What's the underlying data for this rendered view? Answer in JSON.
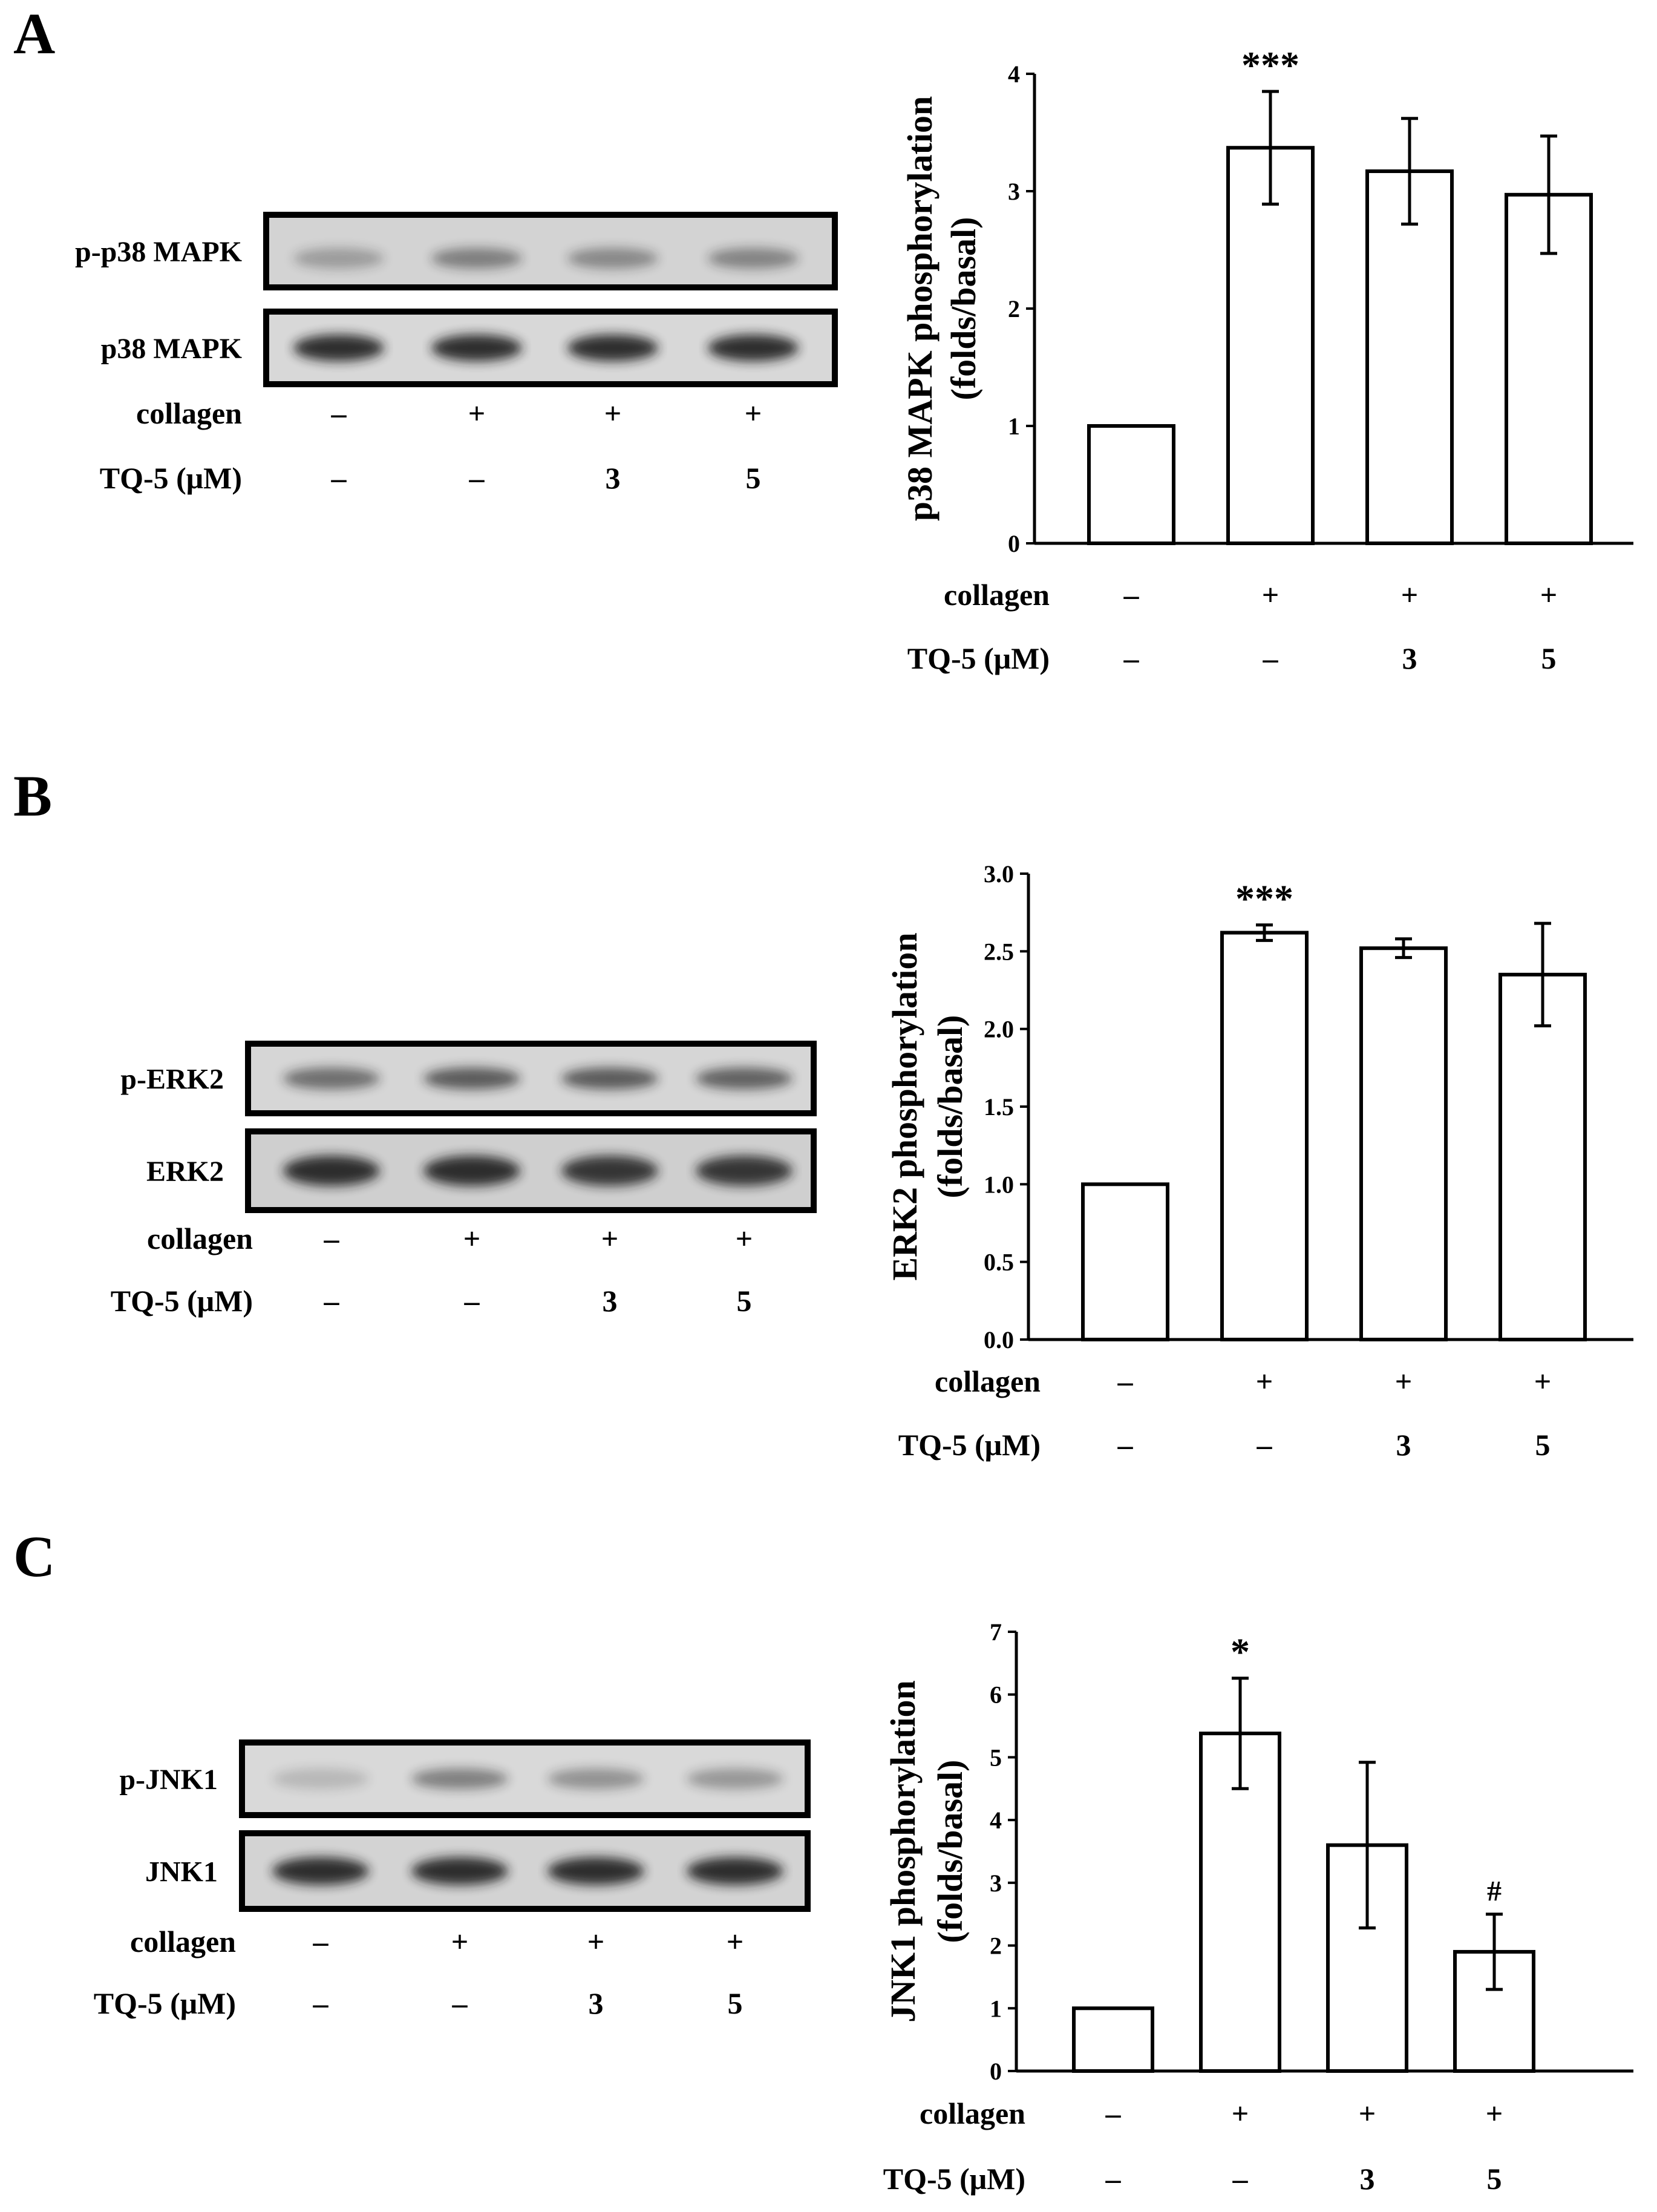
{
  "panels": [
    {
      "letter": "A",
      "blot": {
        "rows": [
          "p-p38 MAPK",
          "p38 MAPK"
        ],
        "condition_rows": [
          {
            "label": "collagen",
            "values": [
              "–",
              "+",
              "+",
              "+"
            ]
          },
          {
            "label": "TQ-5 (μM)",
            "values": [
              "–",
              "–",
              "3",
              "5"
            ]
          }
        ]
      },
      "chart_condition_rows": [
        {
          "label": "collagen",
          "values": [
            "–",
            "+",
            "+",
            "+"
          ]
        },
        {
          "label": "TQ-5 (μM)",
          "values": [
            "–",
            "–",
            "3",
            "5"
          ]
        }
      ]
    },
    {
      "letter": "B",
      "blot": {
        "rows": [
          "p-ERK2",
          "ERK2"
        ],
        "condition_rows": [
          {
            "label": "collagen",
            "values": [
              "–",
              "+",
              "+",
              "+"
            ]
          },
          {
            "label": "TQ-5 (μM)",
            "values": [
              "–",
              "–",
              "3",
              "5"
            ]
          }
        ]
      },
      "chart_condition_rows": [
        {
          "label": "collagen",
          "values": [
            "–",
            "+",
            "+",
            "+"
          ]
        },
        {
          "label": "TQ-5 (μM)",
          "values": [
            "–",
            "–",
            "3",
            "5"
          ]
        }
      ]
    },
    {
      "letter": "C",
      "blot": {
        "rows": [
          "p-JNK1",
          "JNK1"
        ],
        "condition_rows": [
          {
            "label": "collagen",
            "values": [
              "–",
              "+",
              "+",
              "+"
            ]
          },
          {
            "label": "TQ-5 (μM)",
            "values": [
              "–",
              "–",
              "3",
              "5"
            ]
          }
        ]
      },
      "chart_condition_rows": [
        {
          "label": "collagen",
          "values": [
            "–",
            "+",
            "+",
            "+"
          ]
        },
        {
          "label": "TQ-5 (μM)",
          "values": [
            "–",
            "–",
            "3",
            "5"
          ]
        }
      ]
    }
  ],
  "chart_data": [
    {
      "type": "bar",
      "title": "",
      "xlabel": "",
      "ylabel": [
        "p38 MAPK phosphorylation",
        "(folds/basal)"
      ],
      "ylim": [
        0,
        4
      ],
      "yticks": [
        0,
        1,
        2,
        3,
        4
      ],
      "ytick_labels": [
        "0",
        "1",
        "2",
        "3",
        "4"
      ],
      "categories": [
        "–/–",
        "+/–",
        "+/3",
        "+/5"
      ],
      "values": [
        1.0,
        3.37,
        3.17,
        2.97
      ],
      "errors": [
        0,
        0.48,
        0.45,
        0.5
      ],
      "annotations": [
        "",
        "***",
        "",
        ""
      ],
      "grid": false,
      "bar_color": "#ffffff"
    },
    {
      "type": "bar",
      "title": "",
      "xlabel": "",
      "ylabel": [
        "ERK2 phosphorylation",
        "(folds/basal)"
      ],
      "ylim": [
        0,
        3
      ],
      "yticks": [
        0,
        0.5,
        1.0,
        1.5,
        2.0,
        2.5,
        3.0
      ],
      "ytick_labels": [
        "0.0",
        "0.5",
        "1.0",
        "1.5",
        "2.0",
        "2.5",
        "3.0"
      ],
      "categories": [
        "–/–",
        "+/–",
        "+/3",
        "+/5"
      ],
      "values": [
        1.0,
        2.62,
        2.52,
        2.35
      ],
      "errors": [
        0,
        0.05,
        0.06,
        0.33
      ],
      "annotations": [
        "",
        "***",
        "",
        ""
      ],
      "grid": false,
      "bar_color": "#ffffff"
    },
    {
      "type": "bar",
      "title": "",
      "xlabel": "",
      "ylabel": [
        "JNK1 phosphorylation",
        "(folds/basal)"
      ],
      "ylim": [
        0,
        7
      ],
      "yticks": [
        0,
        1,
        2,
        3,
        4,
        5,
        6,
        7
      ],
      "ytick_labels": [
        "0",
        "1",
        "2",
        "3",
        "4",
        "5",
        "6",
        "7"
      ],
      "categories": [
        "–/–",
        "+/–",
        "+/3",
        "+/5"
      ],
      "values": [
        1.0,
        5.38,
        3.6,
        1.9
      ],
      "errors": [
        0,
        0.88,
        1.32,
        0.6
      ],
      "annotations": [
        "",
        "*",
        "",
        "#"
      ],
      "grid": false,
      "bar_color": "#ffffff"
    }
  ]
}
